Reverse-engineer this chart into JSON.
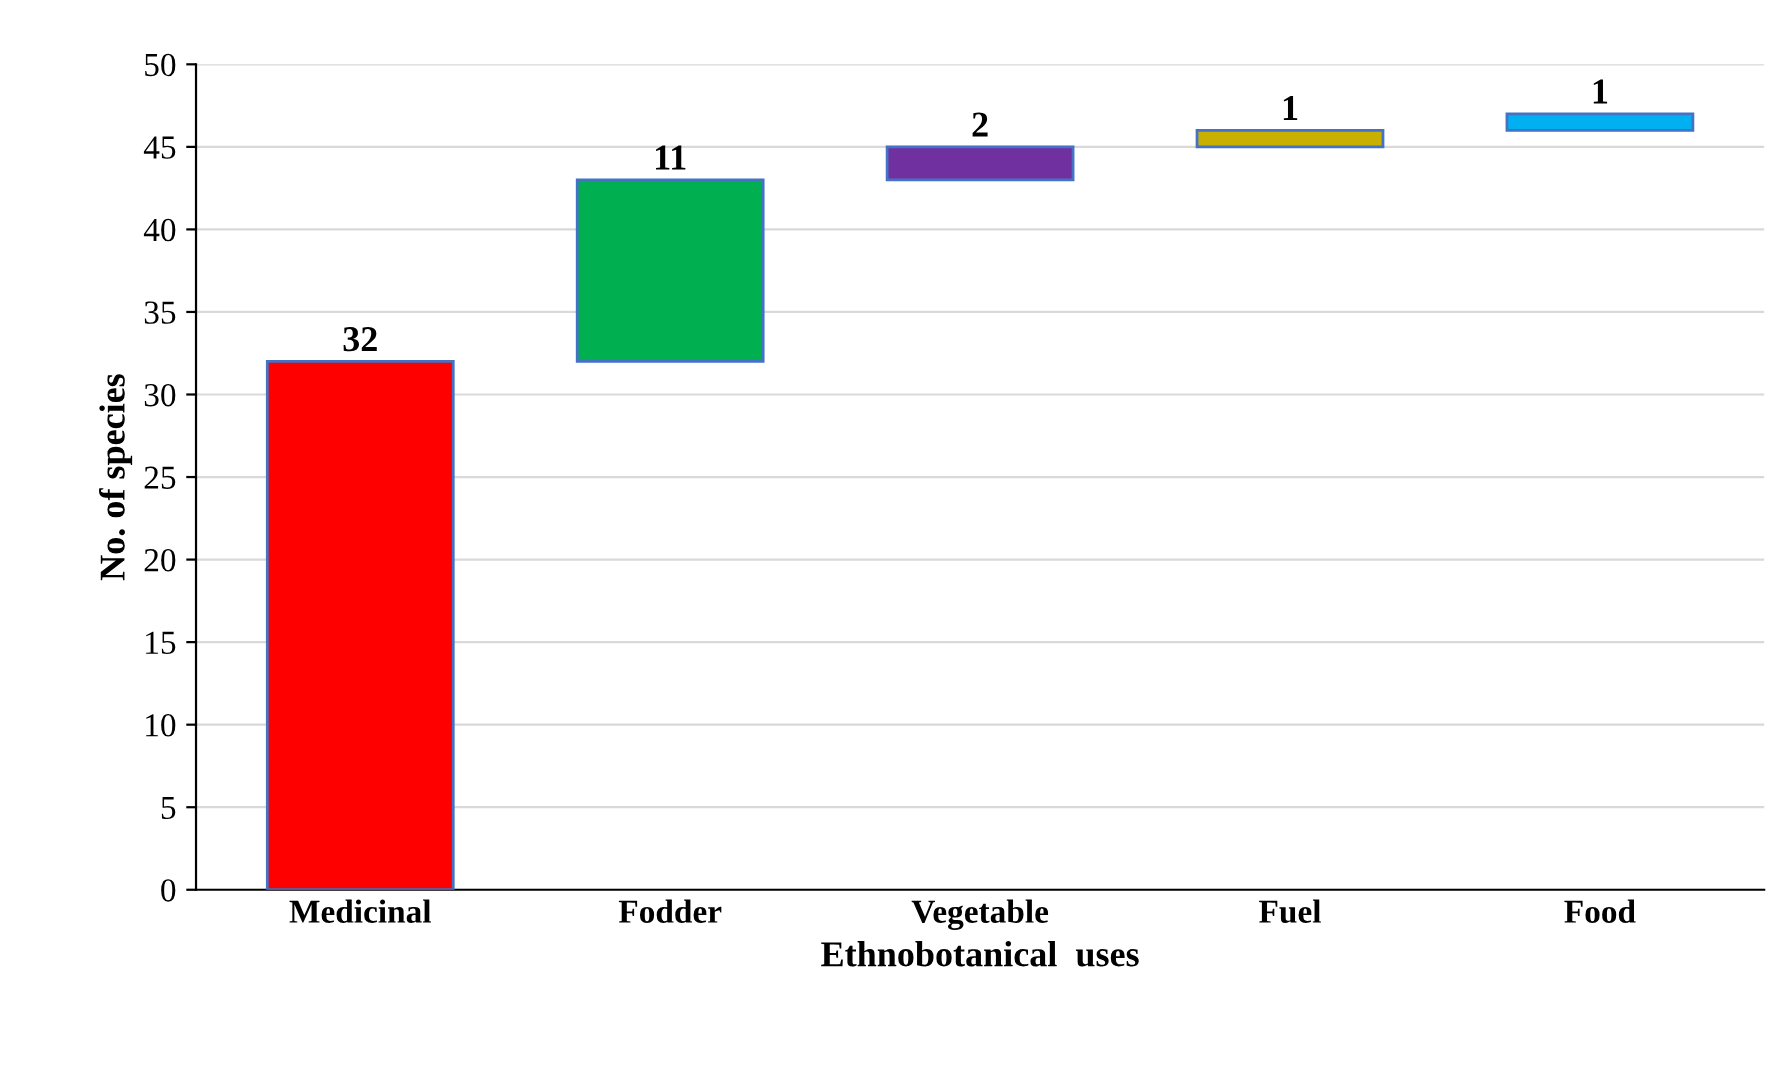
{
  "chart_data": {
    "type": "bar",
    "xlabel": "Ethnobotanical  uses",
    "ylabel": "No. of species",
    "categories": [
      "Medicinal",
      "Fodder",
      "Vegetable",
      "Fuel",
      "Food"
    ],
    "values": [
      32,
      11,
      2,
      1,
      1
    ],
    "base": [
      0,
      32,
      43,
      45,
      46
    ],
    "colors": [
      "#ff0000",
      "#00b050",
      "#7030a0",
      "#c9b000",
      "#00b0f0"
    ],
    "ylim": [
      0,
      50
    ],
    "yticks": [
      0,
      5,
      10,
      15,
      20,
      25,
      30,
      35,
      40,
      45,
      50
    ],
    "grid": "y",
    "data_labels": true,
    "legend": false
  }
}
